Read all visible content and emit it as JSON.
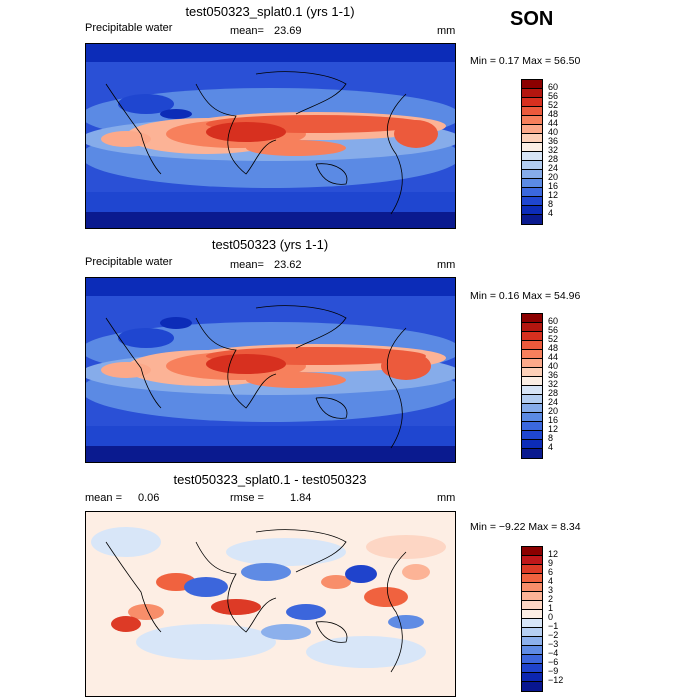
{
  "season": "SON",
  "panels": [
    {
      "title": "test050323_splat0.1 (yrs 1-1)",
      "variable": "Precipitable water",
      "stat_label": "mean=",
      "stat_value": "23.69",
      "stat2_label": "",
      "stat2_value": "",
      "units": "mm",
      "minmax": "Min =    0.17 Max =   56.50",
      "colorbar_labels": [
        "60",
        "56",
        "52",
        "48",
        "44",
        "40",
        "36",
        "32",
        "28",
        "24",
        "20",
        "16",
        "12",
        "8",
        "4"
      ]
    },
    {
      "title": "test050323 (yrs 1-1)",
      "variable": "Precipitable water",
      "stat_label": "mean=",
      "stat_value": "23.62",
      "stat2_label": "",
      "stat2_value": "",
      "units": "mm",
      "minmax": "Min =    0.16 Max =   54.96",
      "colorbar_labels": [
        "60",
        "56",
        "52",
        "48",
        "44",
        "40",
        "36",
        "32",
        "28",
        "24",
        "20",
        "16",
        "12",
        "8",
        "4"
      ]
    },
    {
      "title": "test050323_splat0.1 - test050323",
      "variable": "",
      "stat_label": "mean =",
      "stat_value": "0.06",
      "stat2_label": "rmse =",
      "stat2_value": "1.84",
      "units": "mm",
      "minmax": "Min =  −9.22 Max =    8.34",
      "colorbar_labels": [
        "12",
        "9",
        "6",
        "4",
        "3",
        "2",
        "1",
        "0",
        "−1",
        "−2",
        "−3",
        "−4",
        "−6",
        "−9",
        "−12"
      ]
    }
  ],
  "colors": {
    "abs_scale": [
      "#8b0000",
      "#b3160f",
      "#d7301f",
      "#ec5a3c",
      "#f7805c",
      "#fca98a",
      "#fdd0b8",
      "#fbeee4",
      "#d6e4f6",
      "#b3cdf0",
      "#86acea",
      "#5b8ae4",
      "#3b68de",
      "#1f46d0",
      "#0c2cb8",
      "#0a1a8f"
    ],
    "diff_scale": [
      "#8b0000",
      "#c0171a",
      "#dd3a26",
      "#f0623f",
      "#f88e6a",
      "#fcb396",
      "#fdd6c4",
      "#fdeee4",
      "#d8e6f8",
      "#b6cff2",
      "#8cb0ec",
      "#5f8be4",
      "#3c66dc",
      "#1f43cc",
      "#0c26b0",
      "#081690"
    ]
  }
}
